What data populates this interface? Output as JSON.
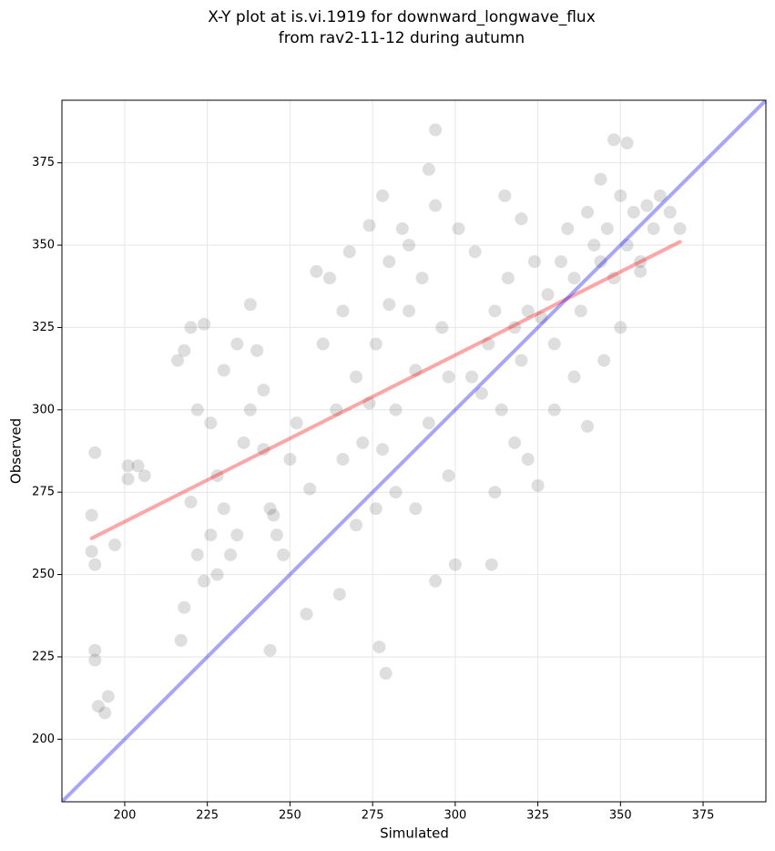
{
  "chart_data": {
    "type": "scatter",
    "title": [
      "X-Y plot at is.vi.1919 for downward_longwave_flux",
      "from rav2-11-12 during autumn"
    ],
    "xlabel": "Simulated",
    "ylabel": "Observed",
    "xlim": [
      181,
      394
    ],
    "ylim": [
      181,
      394
    ],
    "xticks": [
      200,
      225,
      250,
      275,
      300,
      325,
      350,
      375
    ],
    "yticks": [
      200,
      225,
      250,
      275,
      300,
      325,
      350,
      375
    ],
    "grid": true,
    "series": [
      {
        "color": "#000000",
        "alpha": 0.13,
        "x": [
          294,
          191,
          190,
          190,
          191,
          191,
          191,
          192,
          194,
          195,
          197,
          201,
          204,
          206,
          201,
          217,
          218,
          244,
          255,
          265,
          277,
          279,
          294,
          300,
          311,
          325,
          292,
          278,
          352,
          348,
          216,
          218,
          220,
          222,
          224,
          226,
          228,
          230,
          232,
          234,
          236,
          238,
          240,
          242,
          244,
          245,
          246,
          248,
          250,
          252,
          220,
          222,
          224,
          226,
          228,
          230,
          234,
          238,
          242,
          256,
          260,
          262,
          264,
          266,
          268,
          270,
          272,
          274,
          276,
          278,
          280,
          282,
          284,
          286,
          288,
          290,
          292,
          294,
          296,
          298,
          258,
          266,
          270,
          276,
          282,
          288,
          280,
          274,
          286,
          298,
          305,
          308,
          310,
          312,
          314,
          316,
          318,
          320,
          322,
          324,
          326,
          328,
          330,
          332,
          334,
          336,
          338,
          340,
          342,
          344,
          346,
          348,
          350,
          352,
          354,
          356,
          358,
          360,
          362,
          365,
          318,
          322,
          330,
          336,
          340,
          345,
          350,
          356,
          312,
          344,
          368,
          301,
          306,
          315,
          320
        ],
        "values": [
          385,
          287,
          268,
          257,
          253,
          227,
          224,
          210,
          208,
          213,
          259,
          283,
          283,
          280,
          279,
          230,
          240,
          227,
          238,
          244,
          228,
          220,
          248,
          253,
          253,
          277,
          373,
          365,
          381,
          382,
          315,
          318,
          325,
          300,
          326,
          296,
          280,
          270,
          256,
          262,
          290,
          300,
          318,
          288,
          270,
          268,
          262,
          256,
          285,
          296,
          272,
          256,
          248,
          262,
          250,
          312,
          320,
          332,
          306,
          276,
          320,
          340,
          300,
          330,
          348,
          310,
          290,
          356,
          320,
          288,
          345,
          300,
          355,
          330,
          312,
          340,
          296,
          362,
          325,
          280,
          342,
          285,
          265,
          270,
          275,
          270,
          332,
          302,
          350,
          310,
          310,
          305,
          320,
          330,
          300,
          340,
          325,
          315,
          330,
          345,
          328,
          335,
          320,
          345,
          355,
          340,
          330,
          360,
          350,
          345,
          355,
          340,
          365,
          350,
          360,
          345,
          362,
          355,
          365,
          360,
          290,
          285,
          300,
          310,
          295,
          315,
          325,
          342,
          275,
          370,
          355,
          355,
          348,
          365,
          358
        ]
      }
    ],
    "lines": [
      {
        "x": [
          190,
          368
        ],
        "values": [
          261,
          351
        ],
        "color": "#ff0000",
        "alpha": 0.35
      },
      {
        "x": [
          181,
          394
        ],
        "values": [
          181,
          394
        ],
        "color": "#0000ff",
        "alpha": 0.35
      }
    ]
  }
}
